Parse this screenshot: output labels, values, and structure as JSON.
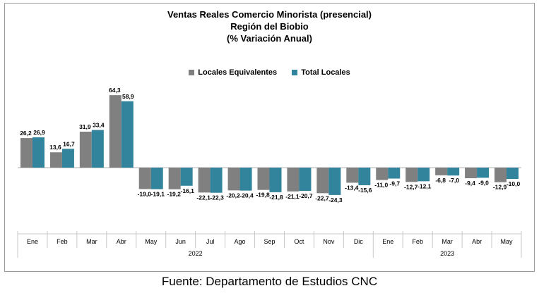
{
  "chart_data": {
    "type": "bar",
    "title": [
      "Ventas Reales Comercio Minorista (presencial)",
      "Región del Biobio",
      "(% Variación Anual)"
    ],
    "categories": [
      "Ene",
      "Feb",
      "Mar",
      "Abr",
      "May",
      "Jun",
      "Jul",
      "Ago",
      "Sep",
      "Oct",
      "Nov",
      "Dic",
      "Ene",
      "Feb",
      "Mar",
      "Abr",
      "May"
    ],
    "groups": [
      {
        "label": "2022",
        "count": 12
      },
      {
        "label": "2023",
        "count": 5
      }
    ],
    "series": [
      {
        "name": "Locales Equivalentes",
        "color": "#808080",
        "values": [
          26.2,
          13.6,
          31.9,
          64.3,
          -19.0,
          -19.2,
          -22.1,
          -20.2,
          -19.8,
          -21.1,
          -22.7,
          -13.4,
          -11.0,
          -12.7,
          -6.8,
          -9.4,
          -12.9
        ],
        "labels": [
          "26,2",
          "13,6",
          "31,9",
          "64,3",
          "-19,0",
          "-19,2",
          "-22,1",
          "-20,2",
          "-19,8",
          "-21,1",
          "-22,7",
          "-13,4",
          "-11,0",
          "-12,7",
          "-6,8",
          "-9,4",
          "-12,9"
        ]
      },
      {
        "name": "Total Locales",
        "color": "#31849b",
        "values": [
          26.9,
          16.7,
          33.4,
          58.9,
          -19.1,
          -16.1,
          -22.3,
          -20.4,
          -21.8,
          -20.7,
          -24.3,
          -15.6,
          -9.7,
          -12.1,
          -7.0,
          -9.0,
          -10.0
        ],
        "labels": [
          "26,9",
          "16,7",
          "33,4",
          "58,9",
          "-19,1",
          "-16,1",
          "-22,3",
          "-20,4",
          "-21,8",
          "-20,7",
          "-24,3",
          "-15,6",
          "-9,7",
          "-12,1",
          "-7,0",
          "-9,0",
          "-10,0"
        ]
      }
    ],
    "legend_position": "top-center",
    "grid": false
  },
  "source": "Fuente: Departamento de Estudios CNC"
}
